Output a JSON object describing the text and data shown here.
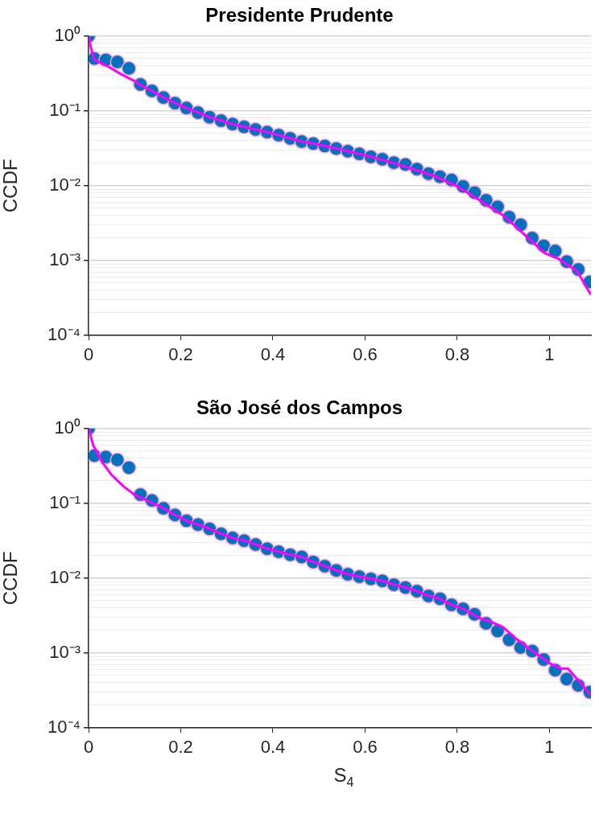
{
  "chart_data": [
    {
      "type": "scatter",
      "title": "Presidente Prudente",
      "ylabel": "CCDF",
      "log": "y",
      "grid": "y",
      "legend": false,
      "marker": "circle",
      "xlim": [
        0,
        1.09
      ],
      "xticks": [
        0,
        0.2,
        0.4,
        0.6,
        0.8,
        1
      ],
      "ylim": [
        0.0001,
        1
      ],
      "yticks": [
        {
          "value": 0.0001,
          "label": "10⁻⁴"
        },
        {
          "value": 0.0002,
          "label": null
        },
        {
          "value": 0.0003,
          "label": null
        },
        {
          "value": 0.0004,
          "label": null
        },
        {
          "value": 0.0005,
          "label": null
        },
        {
          "value": 0.0006,
          "label": null
        },
        {
          "value": 0.0007,
          "label": null
        },
        {
          "value": 0.0008,
          "label": null
        },
        {
          "value": 0.0009,
          "label": null
        },
        {
          "value": 0.001,
          "label": "10⁻³"
        },
        {
          "value": 0.002,
          "label": null
        },
        {
          "value": 0.003,
          "label": null
        },
        {
          "value": 0.004,
          "label": null
        },
        {
          "value": 0.005,
          "label": null
        },
        {
          "value": 0.006,
          "label": null
        },
        {
          "value": 0.007,
          "label": null
        },
        {
          "value": 0.008,
          "label": null
        },
        {
          "value": 0.009,
          "label": null
        },
        {
          "value": 0.01,
          "label": "10⁻²"
        },
        {
          "value": 0.02,
          "label": null
        },
        {
          "value": 0.03,
          "label": null
        },
        {
          "value": 0.04,
          "label": null
        },
        {
          "value": 0.05,
          "label": null
        },
        {
          "value": 0.06,
          "label": null
        },
        {
          "value": 0.07,
          "label": null
        },
        {
          "value": 0.08,
          "label": null
        },
        {
          "value": 0.09,
          "label": null
        },
        {
          "value": 0.1,
          "label": "10⁻¹"
        },
        {
          "value": 0.2,
          "label": null
        },
        {
          "value": 0.3,
          "label": null
        },
        {
          "value": 0.4,
          "label": null
        },
        {
          "value": 0.5,
          "label": null
        },
        {
          "value": 0.6,
          "label": null
        },
        {
          "value": 0.7,
          "label": null
        },
        {
          "value": 0.8,
          "label": null
        },
        {
          "value": 0.9,
          "label": null
        },
        {
          "value": 1,
          "label": "10⁰"
        }
      ],
      "series": [
        {
          "type": "line",
          "marker": "none",
          "color": "#ff00ff",
          "x": [
            0,
            0.005,
            0.0125,
            0.04,
            0.07,
            0.1,
            0.1125,
            0.1375,
            0.1625,
            0.1875,
            0.2125,
            0.2375,
            0.2625,
            0.2875,
            0.3125,
            0.3375,
            0.3625,
            0.3875,
            0.4125,
            0.4375,
            0.4625,
            0.4875,
            0.5125,
            0.5375,
            0.5625,
            0.5875,
            0.6125,
            0.65,
            0.7,
            0.75,
            0.8,
            0.85,
            0.9,
            0.95,
            0.99,
            1.02,
            1.06,
            1.09
          ],
          "values": [
            1,
            0.7,
            0.48,
            0.4,
            0.31,
            0.25,
            0.22,
            0.185,
            0.151,
            0.127,
            0.109,
            0.095,
            0.082,
            0.074,
            0.0665,
            0.061,
            0.0565,
            0.052,
            0.0473,
            0.043,
            0.0388,
            0.0366,
            0.034,
            0.0314,
            0.0289,
            0.0266,
            0.0243,
            0.021,
            0.017,
            0.0135,
            0.0098,
            0.0063,
            0.004,
            0.0021,
            0.00125,
            0.00105,
            0.00072,
            0.00035
          ]
        },
        {
          "type": "scatter",
          "color": "#0072bd",
          "x": [
            0,
            0.0125,
            0.0375,
            0.0625,
            0.0875,
            0.1125,
            0.1375,
            0.1625,
            0.1875,
            0.2125,
            0.2375,
            0.2625,
            0.2875,
            0.3125,
            0.3375,
            0.3625,
            0.3875,
            0.4125,
            0.4375,
            0.4625,
            0.4875,
            0.5125,
            0.5375,
            0.5625,
            0.5875,
            0.6125,
            0.6375,
            0.6625,
            0.6875,
            0.7125,
            0.7375,
            0.7625,
            0.7875,
            0.8125,
            0.8375,
            0.8625,
            0.8875,
            0.9125,
            0.9375,
            0.9625,
            0.9875,
            1.0125,
            1.0375,
            1.0625,
            1.0875
          ],
          "values": [
            1,
            0.5,
            0.48,
            0.45,
            0.37,
            0.225,
            0.185,
            0.151,
            0.127,
            0.109,
            0.095,
            0.082,
            0.074,
            0.0665,
            0.061,
            0.0565,
            0.052,
            0.0473,
            0.043,
            0.0388,
            0.0366,
            0.034,
            0.0314,
            0.0289,
            0.0266,
            0.0243,
            0.0226,
            0.0203,
            0.0192,
            0.0167,
            0.0145,
            0.0132,
            0.0119,
            0.0098,
            0.0081,
            0.0064,
            0.0052,
            0.0038,
            0.003,
            0.002,
            0.00157,
            0.00134,
            0.00097,
            0.00076,
            0.00052
          ]
        }
      ]
    },
    {
      "type": "scatter",
      "title": "São José dos Campos",
      "ylabel": "CCDF",
      "xlabel": "S$_{4}$",
      "log": "y",
      "grid": "y",
      "legend": false,
      "marker": "circle",
      "xlim": [
        0,
        1.09
      ],
      "xticks": [
        0,
        0.2,
        0.4,
        0.6,
        0.8,
        1
      ],
      "ylim": [
        0.0001,
        1
      ],
      "yticks": [
        {
          "value": 0.0001,
          "label": "10⁻⁴"
        },
        {
          "value": 0.0002,
          "label": null
        },
        {
          "value": 0.0003,
          "label": null
        },
        {
          "value": 0.0004,
          "label": null
        },
        {
          "value": 0.0005,
          "label": null
        },
        {
          "value": 0.0006,
          "label": null
        },
        {
          "value": 0.0007,
          "label": null
        },
        {
          "value": 0.0008,
          "label": null
        },
        {
          "value": 0.0009,
          "label": null
        },
        {
          "value": 0.001,
          "label": "10⁻³"
        },
        {
          "value": 0.002,
          "label": null
        },
        {
          "value": 0.003,
          "label": null
        },
        {
          "value": 0.004,
          "label": null
        },
        {
          "value": 0.005,
          "label": null
        },
        {
          "value": 0.006,
          "label": null
        },
        {
          "value": 0.007,
          "label": null
        },
        {
          "value": 0.008,
          "label": null
        },
        {
          "value": 0.009,
          "label": null
        },
        {
          "value": 0.01,
          "label": "10⁻²"
        },
        {
          "value": 0.02,
          "label": null
        },
        {
          "value": 0.03,
          "label": null
        },
        {
          "value": 0.04,
          "label": null
        },
        {
          "value": 0.05,
          "label": null
        },
        {
          "value": 0.06,
          "label": null
        },
        {
          "value": 0.07,
          "label": null
        },
        {
          "value": 0.08,
          "label": null
        },
        {
          "value": 0.09,
          "label": null
        },
        {
          "value": 0.1,
          "label": "10⁻¹"
        },
        {
          "value": 0.2,
          "label": null
        },
        {
          "value": 0.3,
          "label": null
        },
        {
          "value": 0.4,
          "label": null
        },
        {
          "value": 0.5,
          "label": null
        },
        {
          "value": 0.6,
          "label": null
        },
        {
          "value": 0.7,
          "label": null
        },
        {
          "value": 0.8,
          "label": null
        },
        {
          "value": 0.9,
          "label": null
        },
        {
          "value": 1,
          "label": "10⁰"
        }
      ],
      "series": [
        {
          "type": "line",
          "marker": "none",
          "color": "#ff00ff",
          "x": [
            0,
            0.01,
            0.03,
            0.05,
            0.075,
            0.1,
            0.125,
            0.1625,
            0.1875,
            0.2125,
            0.2375,
            0.2625,
            0.2875,
            0.3125,
            0.3375,
            0.3625,
            0.3875,
            0.4125,
            0.4375,
            0.4625,
            0.4875,
            0.5125,
            0.5375,
            0.5625,
            0.5875,
            0.6125,
            0.6375,
            0.6625,
            0.6875,
            0.7125,
            0.7375,
            0.7625,
            0.7875,
            0.8125,
            0.85,
            0.875,
            0.9,
            0.925,
            0.95,
            0.975,
            1.0,
            1.025,
            1.04,
            1.06,
            1.09
          ],
          "values": [
            1,
            0.6,
            0.35,
            0.24,
            0.17,
            0.13,
            0.11,
            0.086,
            0.07,
            0.0585,
            0.052,
            0.0457,
            0.0392,
            0.0345,
            0.0318,
            0.0282,
            0.0248,
            0.0226,
            0.0206,
            0.0192,
            0.0165,
            0.0145,
            0.0127,
            0.0113,
            0.0105,
            0.0098,
            0.0092,
            0.0082,
            0.0075,
            0.0067,
            0.0058,
            0.0053,
            0.0044,
            0.0039,
            0.0029,
            0.0026,
            0.0022,
            0.0016,
            0.00122,
            0.00095,
            0.00073,
            0.00062,
            0.00062,
            0.00045,
            0.00027
          ]
        },
        {
          "type": "scatter",
          "color": "#0072bd",
          "x": [
            0,
            0.0125,
            0.0375,
            0.0625,
            0.0875,
            0.1125,
            0.1375,
            0.1625,
            0.1875,
            0.2125,
            0.2375,
            0.2625,
            0.2875,
            0.3125,
            0.3375,
            0.3625,
            0.3875,
            0.4125,
            0.4375,
            0.4625,
            0.4875,
            0.5125,
            0.5375,
            0.5625,
            0.5875,
            0.6125,
            0.6375,
            0.6625,
            0.6875,
            0.7125,
            0.7375,
            0.7625,
            0.7875,
            0.8125,
            0.8375,
            0.8625,
            0.8875,
            0.9125,
            0.9375,
            0.9625,
            0.9875,
            1.0125,
            1.0375,
            1.0625,
            1.0875
          ],
          "values": [
            1,
            0.435,
            0.415,
            0.382,
            0.3,
            0.131,
            0.109,
            0.086,
            0.07,
            0.0585,
            0.052,
            0.0457,
            0.0392,
            0.0345,
            0.0318,
            0.0282,
            0.0248,
            0.0226,
            0.0206,
            0.0192,
            0.0165,
            0.0145,
            0.0127,
            0.0113,
            0.0105,
            0.0098,
            0.0092,
            0.0082,
            0.0075,
            0.0067,
            0.0058,
            0.0053,
            0.0044,
            0.0039,
            0.0033,
            0.0025,
            0.00197,
            0.0015,
            0.00119,
            0.00106,
            0.00082,
            0.00059,
            0.00045,
            0.00037,
            0.0003
          ]
        }
      ]
    }
  ]
}
